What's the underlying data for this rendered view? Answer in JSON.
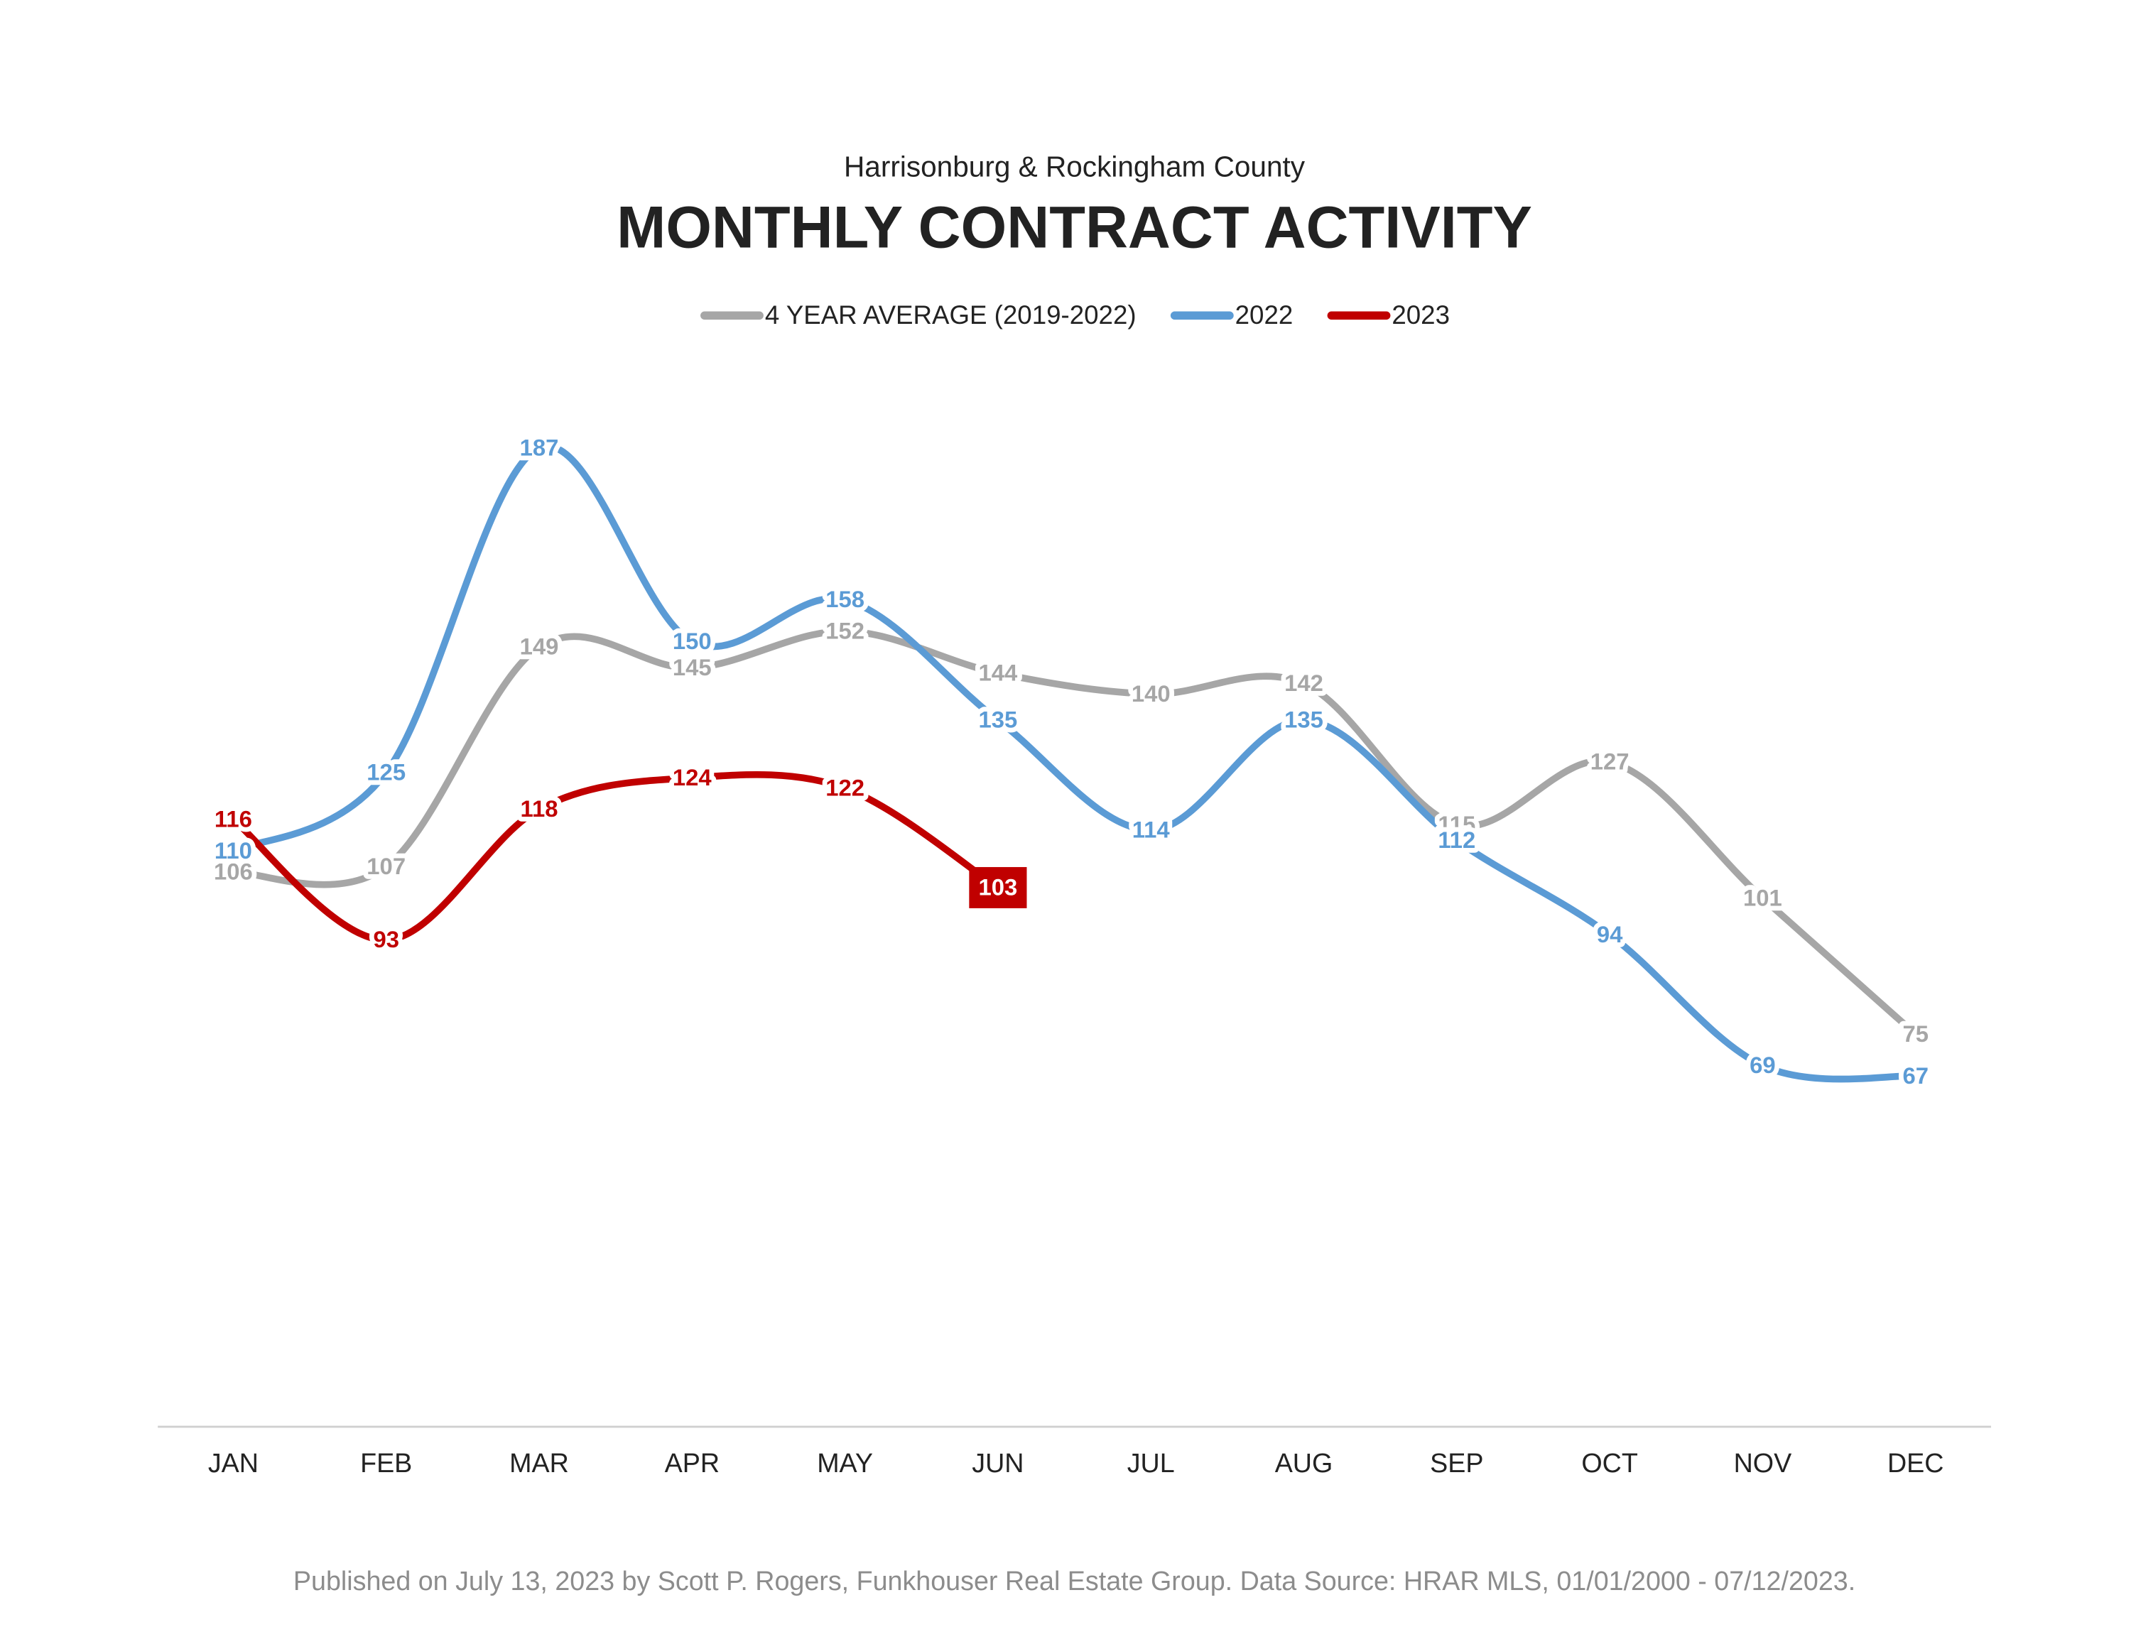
{
  "chart_data": {
    "type": "line",
    "subtitle": "Harrisonburg & Rockingham County",
    "title": "MONTHLY CONTRACT ACTIVITY",
    "categories": [
      "JAN",
      "FEB",
      "MAR",
      "APR",
      "MAY",
      "JUN",
      "JUL",
      "AUG",
      "SEP",
      "OCT",
      "NOV",
      "DEC"
    ],
    "series": [
      {
        "name": "4 YEAR AVERAGE (2019-2022)",
        "color": "#a6a6a6",
        "values": [
          106,
          107,
          149,
          145,
          152,
          144,
          140,
          142,
          115,
          127,
          101,
          75
        ]
      },
      {
        "name": "2022",
        "color": "#5b9bd5",
        "values": [
          110,
          125,
          187,
          150,
          158,
          135,
          114,
          135,
          112,
          94,
          69,
          67
        ]
      },
      {
        "name": "2023",
        "color": "#c00000",
        "values": [
          116,
          93,
          118,
          124,
          122,
          103,
          null,
          null,
          null,
          null,
          null,
          null
        ]
      }
    ],
    "ylim": [
      0,
      200
    ],
    "smooth": true,
    "legend": "top",
    "source": "Published on July 13, 2023 by Scott P. Rogers, Funkhouser Real Estate Group. Data Source: HRAR MLS, 01/01/2000 - 07/12/2023."
  }
}
